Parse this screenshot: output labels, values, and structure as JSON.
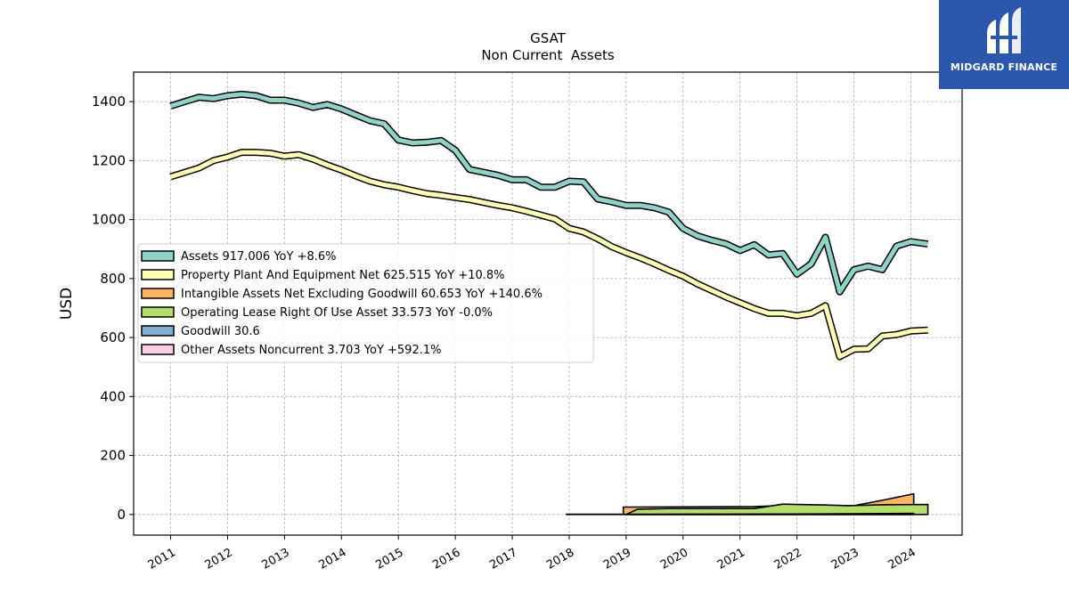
{
  "brand": {
    "name": "MIDGARD FINANCE",
    "icon": "midgard-logo-icon",
    "color": "#2b58ae"
  },
  "chart_data": {
    "type": "area",
    "title": "GSAT",
    "subtitle": "Non Current  Assets",
    "xlabel": "",
    "ylabel": "USD",
    "xlim": [
      2010.35,
      2024.9
    ],
    "ylim": [
      -70,
      1500
    ],
    "yticks": [
      0,
      200,
      400,
      600,
      800,
      1000,
      1200,
      1400
    ],
    "xticks": [
      "2011",
      "2012",
      "2013",
      "2014",
      "2015",
      "2016",
      "2017",
      "2018",
      "2019",
      "2020",
      "2021",
      "2022",
      "2023",
      "2024"
    ],
    "grid": true,
    "legend_position": "center-left",
    "series": [
      {
        "name": "Assets",
        "legend": "Assets  917.006 YoY +8.6%",
        "color": "#8dd3c7",
        "x": [
          2011.0,
          2011.25,
          2011.5,
          2011.75,
          2012.0,
          2012.25,
          2012.5,
          2012.75,
          2013.0,
          2013.25,
          2013.5,
          2013.75,
          2014.0,
          2014.25,
          2014.5,
          2014.75,
          2015.0,
          2015.25,
          2015.5,
          2015.75,
          2016.0,
          2016.25,
          2016.5,
          2016.75,
          2017.0,
          2017.25,
          2017.5,
          2017.75,
          2018.0,
          2018.25,
          2018.5,
          2018.75,
          2019.0,
          2019.25,
          2019.5,
          2019.75,
          2020.0,
          2020.25,
          2020.5,
          2020.75,
          2021.0,
          2021.25,
          2021.5,
          2021.75,
          2022.0,
          2022.25,
          2022.5,
          2022.75,
          2023.0,
          2023.25,
          2023.5,
          2023.75,
          2024.0,
          2024.3
        ],
        "y": [
          1385,
          1400,
          1415,
          1410,
          1420,
          1425,
          1420,
          1405,
          1405,
          1395,
          1380,
          1390,
          1375,
          1355,
          1335,
          1325,
          1270,
          1260,
          1262,
          1268,
          1235,
          1170,
          1160,
          1150,
          1135,
          1135,
          1110,
          1110,
          1130,
          1128,
          1070,
          1060,
          1048,
          1048,
          1040,
          1025,
          970,
          945,
          930,
          918,
          895,
          915,
          880,
          885,
          815,
          850,
          940,
          755,
          830,
          842,
          830,
          910,
          925,
          917
        ]
      },
      {
        "name": "Property Plant And Equipment Net",
        "legend": "Property Plant And Equipment Net  625.515 YoY +10.8%",
        "color": "#ffffb3",
        "x": [
          2011.0,
          2011.25,
          2011.5,
          2011.75,
          2012.0,
          2012.25,
          2012.5,
          2012.75,
          2013.0,
          2013.25,
          2013.5,
          2013.75,
          2014.0,
          2014.25,
          2014.5,
          2014.75,
          2015.0,
          2015.25,
          2015.5,
          2015.75,
          2016.0,
          2016.25,
          2016.5,
          2016.75,
          2017.0,
          2017.25,
          2017.5,
          2017.75,
          2018.0,
          2018.25,
          2018.5,
          2018.75,
          2019.0,
          2019.25,
          2019.5,
          2019.75,
          2020.0,
          2020.25,
          2020.5,
          2020.75,
          2021.0,
          2021.25,
          2021.5,
          2021.75,
          2022.0,
          2022.25,
          2022.5,
          2022.75,
          2023.0,
          2023.25,
          2023.5,
          2023.75,
          2024.0,
          2024.3
        ],
        "y": [
          1145,
          1160,
          1175,
          1200,
          1212,
          1228,
          1228,
          1225,
          1215,
          1220,
          1205,
          1185,
          1168,
          1148,
          1130,
          1118,
          1110,
          1098,
          1088,
          1082,
          1075,
          1068,
          1058,
          1048,
          1040,
          1028,
          1015,
          1002,
          970,
          958,
          935,
          908,
          888,
          870,
          850,
          828,
          808,
          782,
          760,
          738,
          718,
          698,
          682,
          682,
          674,
          682,
          708,
          535,
          560,
          562,
          605,
          610,
          622,
          625
        ]
      },
      {
        "name": "Intangible Assets Net Excluding Goodwill",
        "legend": "Intangible Assets Net Excluding Goodwill  60.653 YoY +140.6%",
        "color": "#fdb462",
        "x": [
          2018.95,
          2021.25,
          2022.0,
          2022.5,
          2023.0,
          2023.5,
          2024.05
        ],
        "y": [
          25,
          27,
          32,
          30,
          30,
          48,
          70
        ]
      },
      {
        "name": "Operating Lease Right Of Use Asset",
        "legend": "Operating Lease Right Of Use Asset  33.573 YoY -0.0%",
        "color": "#b3de69",
        "x": [
          2019.0,
          2019.2,
          2019.75,
          2020.5,
          2021.25,
          2021.75,
          2022.5,
          2022.9,
          2023.5,
          2024.3
        ],
        "y": [
          0,
          18,
          20,
          20,
          20,
          35,
          32,
          30,
          33,
          34
        ]
      },
      {
        "name": "Goodwill",
        "legend": "Goodwill  30.6",
        "color": "#80b1d3",
        "x": [],
        "y": []
      },
      {
        "name": "Other Assets Noncurrent",
        "legend": "Other Assets Noncurrent  3.703 YoY +592.1%",
        "color": "#fccde5",
        "x": [
          2017.95,
          2019.5,
          2020.5,
          2021.5,
          2022.5,
          2023.5,
          2024.05
        ],
        "y": [
          1,
          1,
          1.2,
          1.5,
          2,
          3,
          3.7
        ]
      }
    ]
  }
}
